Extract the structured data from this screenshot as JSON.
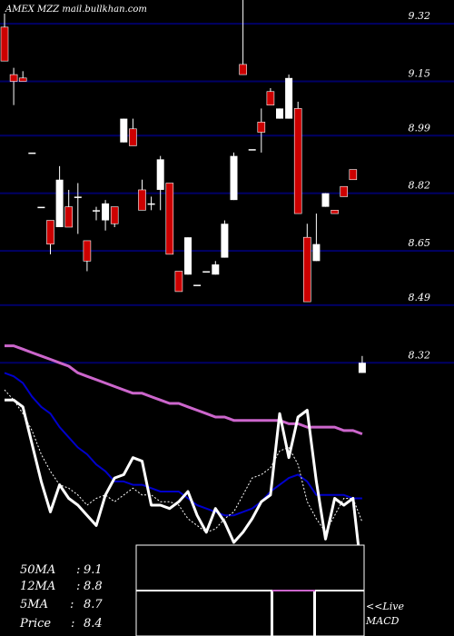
{
  "header": {
    "watermark": "AMEX  MZZ mail.bullkhan.com"
  },
  "colors": {
    "background": "#000000",
    "gridline": "#000066",
    "up_candle": "#ffffff",
    "down_candle": "#cc0000",
    "ma50": "#cc66cc",
    "ma12": "#0000cc",
    "ma5": "#ffffff",
    "price_line": "#ffffff",
    "macd_signal": "#cc66cc"
  },
  "chart_data": {
    "type": "candlestick",
    "title": "",
    "y_ticks": [
      "9.32",
      "9.15",
      "8.99",
      "8.82",
      "8.65",
      "8.49",
      "8.32"
    ],
    "y_tick_values": [
      9.32,
      9.15,
      8.99,
      8.82,
      8.65,
      8.49,
      8.32
    ],
    "ylim": [
      8.05,
      9.39
    ],
    "candles": [
      {
        "o": 9.31,
        "h": 9.35,
        "l": 9.21,
        "c": 9.21
      },
      {
        "o": 9.17,
        "h": 9.19,
        "l": 9.08,
        "c": 9.15
      },
      {
        "o": 9.16,
        "h": 9.18,
        "l": 9.15,
        "c": 9.15
      },
      {
        "o": 8.94,
        "h": 8.94,
        "l": 8.94,
        "c": 8.94
      },
      {
        "o": 8.78,
        "h": 8.78,
        "l": 8.78,
        "c": 8.78
      },
      {
        "o": 8.74,
        "h": 8.74,
        "l": 8.64,
        "c": 8.67
      },
      {
        "o": 8.72,
        "h": 8.9,
        "l": 8.72,
        "c": 8.86
      },
      {
        "o": 8.78,
        "h": 8.83,
        "l": 8.72,
        "c": 8.72
      },
      {
        "o": 8.81,
        "h": 8.85,
        "l": 8.7,
        "c": 8.81
      },
      {
        "o": 8.68,
        "h": 8.68,
        "l": 8.59,
        "c": 8.62
      },
      {
        "o": 8.77,
        "h": 8.78,
        "l": 8.74,
        "c": 8.77
      },
      {
        "o": 8.74,
        "h": 8.8,
        "l": 8.71,
        "c": 8.79
      },
      {
        "o": 8.78,
        "h": 8.78,
        "l": 8.72,
        "c": 8.73
      },
      {
        "o": 8.97,
        "h": 9.04,
        "l": 8.97,
        "c": 9.04
      },
      {
        "o": 9.01,
        "h": 9.04,
        "l": 8.96,
        "c": 8.96
      },
      {
        "o": 8.83,
        "h": 8.86,
        "l": 8.77,
        "c": 8.77
      },
      {
        "o": 8.79,
        "h": 8.81,
        "l": 8.77,
        "c": 8.79
      },
      {
        "o": 8.83,
        "h": 8.93,
        "l": 8.77,
        "c": 8.92
      },
      {
        "o": 8.85,
        "h": 8.85,
        "l": 8.64,
        "c": 8.64
      },
      {
        "o": 8.59,
        "h": 8.59,
        "l": 8.53,
        "c": 8.53
      },
      {
        "o": 8.58,
        "h": 8.69,
        "l": 8.58,
        "c": 8.69
      },
      {
        "o": 8.55,
        "h": 8.55,
        "l": 8.55,
        "c": 8.55
      },
      {
        "o": 8.59,
        "h": 8.59,
        "l": 8.59,
        "c": 8.59
      },
      {
        "o": 8.58,
        "h": 8.62,
        "l": 8.58,
        "c": 8.61
      },
      {
        "o": 8.63,
        "h": 8.74,
        "l": 8.63,
        "c": 8.73
      },
      {
        "o": 8.8,
        "h": 8.94,
        "l": 8.8,
        "c": 8.93
      },
      {
        "o": 9.2,
        "h": 9.39,
        "l": 9.17,
        "c": 9.17
      },
      {
        "o": 8.95,
        "h": 8.95,
        "l": 8.95,
        "c": 8.95
      },
      {
        "o": 9.03,
        "h": 9.07,
        "l": 8.94,
        "c": 9.0
      },
      {
        "o": 9.12,
        "h": 9.13,
        "l": 9.08,
        "c": 9.08
      },
      {
        "o": 9.04,
        "h": 9.07,
        "l": 9.04,
        "c": 9.07
      },
      {
        "o": 9.04,
        "h": 9.17,
        "l": 9.04,
        "c": 9.16
      },
      {
        "o": 9.07,
        "h": 9.09,
        "l": 8.76,
        "c": 8.76
      },
      {
        "o": 8.69,
        "h": 8.73,
        "l": 8.5,
        "c": 8.5
      },
      {
        "o": 8.62,
        "h": 8.76,
        "l": 8.62,
        "c": 8.67
      },
      {
        "o": 8.78,
        "h": 8.82,
        "l": 8.78,
        "c": 8.82
      },
      {
        "o": 8.77,
        "h": 8.77,
        "l": 8.76,
        "c": 8.76
      },
      {
        "o": 8.84,
        "h": 8.84,
        "l": 8.81,
        "c": 8.81
      },
      {
        "o": 8.89,
        "h": 8.89,
        "l": 8.86,
        "c": 8.86
      },
      {
        "o": 8.29,
        "h": 8.34,
        "l": 8.29,
        "c": 8.32
      }
    ],
    "ma_series": [
      {
        "key": "ma50",
        "values": [
          8.37,
          8.37,
          8.36,
          8.35,
          8.34,
          8.33,
          8.32,
          8.31,
          8.29,
          8.28,
          8.27,
          8.26,
          8.25,
          8.24,
          8.23,
          8.23,
          8.22,
          8.21,
          8.2,
          8.2,
          8.19,
          8.18,
          8.17,
          8.16,
          8.16,
          8.15,
          8.15,
          8.15,
          8.15,
          8.15,
          8.15,
          8.14,
          8.14,
          8.13,
          8.13,
          8.13,
          8.13,
          8.12,
          8.12,
          8.11
        ]
      },
      {
        "key": "ma12",
        "values": [
          8.29,
          8.28,
          8.26,
          8.22,
          8.19,
          8.17,
          8.13,
          8.1,
          8.07,
          8.05,
          8.02,
          8.0,
          7.97,
          7.97,
          7.96,
          7.96,
          7.95,
          7.94,
          7.94,
          7.94,
          7.92,
          7.9,
          7.89,
          7.88,
          7.87,
          7.87,
          7.88,
          7.89,
          7.91,
          7.94,
          7.96,
          7.98,
          7.99,
          7.97,
          7.93,
          7.93,
          7.93,
          7.93,
          7.92,
          7.92
        ]
      },
      {
        "key": "ma5",
        "values": [
          8.24,
          8.21,
          8.17,
          8.12,
          8.05,
          8.0,
          7.96,
          7.95,
          7.93,
          7.9,
          7.92,
          7.93,
          7.91,
          7.93,
          7.95,
          7.93,
          7.93,
          7.91,
          7.91,
          7.9,
          7.86,
          7.84,
          7.82,
          7.83,
          7.86,
          7.88,
          7.93,
          7.98,
          7.99,
          8.01,
          8.06,
          8.07,
          8.02,
          7.91,
          7.86,
          7.82,
          7.87,
          7.92,
          7.92,
          7.85
        ]
      },
      {
        "key": "price_line",
        "values": [
          8.21,
          8.21,
          8.19,
          8.08,
          7.97,
          7.88,
          7.96,
          7.92,
          7.9,
          7.87,
          7.84,
          7.93,
          7.98,
          7.99,
          8.04,
          8.03,
          7.9,
          7.9,
          7.89,
          7.91,
          7.94,
          7.87,
          7.82,
          7.89,
          7.85,
          7.79,
          7.82,
          7.86,
          7.91,
          7.93,
          8.17,
          8.04,
          8.16,
          8.18,
          7.97,
          7.8,
          7.92,
          7.9,
          7.92,
          7.68
        ]
      }
    ]
  },
  "ma_legend": [
    {
      "label": "50MA",
      "value": "9.1"
    },
    {
      "label": "12MA",
      "value": "8.8"
    },
    {
      "label": "5MA",
      "value": "8.7"
    },
    {
      "label": "Price",
      "value": "8.4"
    }
  ],
  "macd_panel": {
    "live_label": "<<Live",
    "macd_label": "MACD"
  }
}
